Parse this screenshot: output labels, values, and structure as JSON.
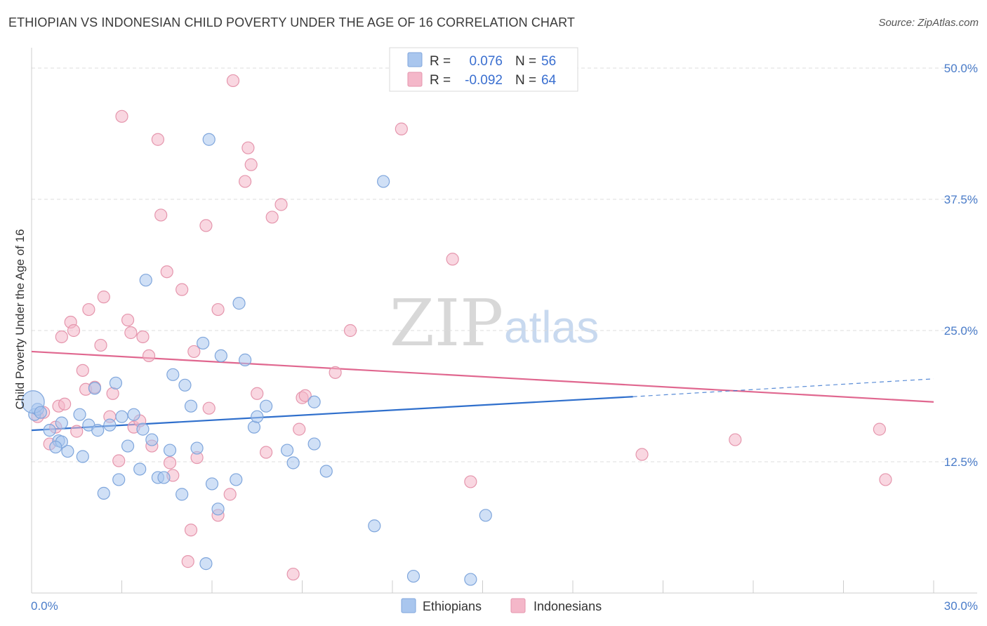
{
  "title": "ETHIOPIAN VS INDONESIAN CHILD POVERTY UNDER THE AGE OF 16 CORRELATION CHART",
  "source": "Source: ZipAtlas.com",
  "watermark": {
    "zip": "ZIP",
    "atlas": "atlas"
  },
  "legend": {
    "r_label": "R =",
    "n_label": "N =",
    "rows": [
      {
        "r": "0.076",
        "n": "56",
        "color": "#a9c6ee"
      },
      {
        "r": "-0.092",
        "n": "64",
        "color": "#f4b7c9"
      }
    ]
  },
  "bottom_legend": [
    {
      "label": "Ethiopians",
      "color": "#a9c6ee"
    },
    {
      "label": "Indonesians",
      "color": "#f4b7c9"
    }
  ],
  "colors": {
    "ethiopian_fill": "#a9c6ee",
    "ethiopian_stroke": "#7fa6dc",
    "ethiopian_line": "#2f6fcc",
    "indonesian_fill": "#f4b7c9",
    "indonesian_stroke": "#e596ad",
    "indonesian_line": "#e0678f",
    "tick_text": "#4a7cc9"
  },
  "chart_data": {
    "type": "scatter",
    "title": "ETHIOPIAN VS INDONESIAN CHILD POVERTY UNDER THE AGE OF 16 CORRELATION CHART",
    "xlabel": "",
    "ylabel": "Child Poverty Under the Age of 16",
    "xlim": [
      0,
      30
    ],
    "ylim": [
      0,
      50
    ],
    "x_tick_labels": [
      "0.0%",
      "30.0%"
    ],
    "y_tick_labels": [
      "12.5%",
      "25.0%",
      "37.5%",
      "50.0%"
    ],
    "y_ticks": [
      12.5,
      25.0,
      37.5,
      50.0
    ],
    "x_minor_ticks": [
      0,
      3,
      6,
      9,
      12,
      15,
      18,
      21,
      24,
      27,
      30
    ],
    "grid": "horizontal dashed",
    "legend_placement": "top-center",
    "series": [
      {
        "name": "Ethiopians",
        "points": [
          [
            0.1,
            17.0
          ],
          [
            0.2,
            17.5
          ],
          [
            0.6,
            15.5
          ],
          [
            0.9,
            14.5
          ],
          [
            1.0,
            16.2
          ],
          [
            1.2,
            13.5
          ],
          [
            1.6,
            17.0
          ],
          [
            1.7,
            13.0
          ],
          [
            1.9,
            16.0
          ],
          [
            2.1,
            19.5
          ],
          [
            2.2,
            15.5
          ],
          [
            2.4,
            9.5
          ],
          [
            2.6,
            16.0
          ],
          [
            2.8,
            20.0
          ],
          [
            2.9,
            10.8
          ],
          [
            3.0,
            16.8
          ],
          [
            3.2,
            14.0
          ],
          [
            3.4,
            17.0
          ],
          [
            3.6,
            11.8
          ],
          [
            3.7,
            15.6
          ],
          [
            3.8,
            29.8
          ],
          [
            4.0,
            14.6
          ],
          [
            4.2,
            11.0
          ],
          [
            4.4,
            11.0
          ],
          [
            4.6,
            13.6
          ],
          [
            4.7,
            20.8
          ],
          [
            5.0,
            9.4
          ],
          [
            5.1,
            19.8
          ],
          [
            5.3,
            17.8
          ],
          [
            5.5,
            13.8
          ],
          [
            5.7,
            23.8
          ],
          [
            5.8,
            2.8
          ],
          [
            5.9,
            43.2
          ],
          [
            6.0,
            10.4
          ],
          [
            6.2,
            8.0
          ],
          [
            6.3,
            22.6
          ],
          [
            6.8,
            10.8
          ],
          [
            6.9,
            27.6
          ],
          [
            7.1,
            22.2
          ],
          [
            7.4,
            15.8
          ],
          [
            7.5,
            16.8
          ],
          [
            7.8,
            17.8
          ],
          [
            8.5,
            13.6
          ],
          [
            8.7,
            12.4
          ],
          [
            9.4,
            14.2
          ],
          [
            9.4,
            18.2
          ],
          [
            9.8,
            11.6
          ],
          [
            11.4,
            6.4
          ],
          [
            11.7,
            39.2
          ],
          [
            12.7,
            1.6
          ],
          [
            14.6,
            1.3
          ],
          [
            15.1,
            7.4
          ],
          [
            0.05,
            18.2
          ],
          [
            0.3,
            17.2
          ],
          [
            1.0,
            14.4
          ],
          [
            0.8,
            13.9
          ]
        ],
        "trend": {
          "x_solid": [
            0,
            20
          ],
          "y_solid": [
            15.5,
            18.7
          ],
          "x_dashed": [
            20,
            30
          ],
          "y_dashed": [
            18.7,
            20.4
          ]
        }
      },
      {
        "name": "Indonesians",
        "points": [
          [
            0.2,
            16.8
          ],
          [
            0.4,
            17.2
          ],
          [
            0.6,
            14.2
          ],
          [
            0.8,
            15.8
          ],
          [
            0.9,
            17.8
          ],
          [
            1.0,
            24.4
          ],
          [
            1.1,
            18.0
          ],
          [
            1.3,
            25.8
          ],
          [
            1.4,
            25.0
          ],
          [
            1.5,
            15.4
          ],
          [
            1.7,
            21.2
          ],
          [
            1.8,
            19.4
          ],
          [
            1.9,
            27.0
          ],
          [
            2.1,
            19.6
          ],
          [
            2.3,
            23.6
          ],
          [
            2.4,
            28.2
          ],
          [
            2.6,
            16.8
          ],
          [
            2.7,
            19.0
          ],
          [
            2.9,
            12.6
          ],
          [
            3.0,
            45.4
          ],
          [
            3.2,
            26.0
          ],
          [
            3.3,
            24.8
          ],
          [
            3.4,
            15.8
          ],
          [
            3.6,
            16.4
          ],
          [
            3.7,
            24.4
          ],
          [
            3.9,
            22.6
          ],
          [
            4.0,
            14.0
          ],
          [
            4.2,
            43.2
          ],
          [
            4.3,
            36.0
          ],
          [
            4.5,
            30.6
          ],
          [
            4.6,
            12.4
          ],
          [
            4.7,
            11.2
          ],
          [
            5.0,
            28.9
          ],
          [
            5.2,
            3.0
          ],
          [
            5.3,
            6.0
          ],
          [
            5.4,
            23.0
          ],
          [
            5.5,
            12.9
          ],
          [
            5.8,
            35.0
          ],
          [
            5.9,
            17.6
          ],
          [
            6.2,
            7.4
          ],
          [
            6.2,
            27.0
          ],
          [
            6.6,
            9.4
          ],
          [
            6.7,
            48.8
          ],
          [
            7.1,
            39.2
          ],
          [
            7.2,
            42.4
          ],
          [
            7.3,
            40.8
          ],
          [
            7.5,
            19.0
          ],
          [
            7.8,
            13.4
          ],
          [
            8.0,
            35.8
          ],
          [
            8.3,
            37.0
          ],
          [
            8.7,
            1.8
          ],
          [
            8.9,
            15.6
          ],
          [
            9.0,
            18.6
          ],
          [
            9.1,
            18.8
          ],
          [
            10.1,
            21.0
          ],
          [
            10.6,
            25.0
          ],
          [
            12.3,
            44.2
          ],
          [
            14.0,
            31.8
          ],
          [
            14.6,
            10.6
          ],
          [
            16.2,
            49.6
          ],
          [
            20.3,
            13.2
          ],
          [
            23.4,
            14.6
          ],
          [
            28.2,
            15.6
          ],
          [
            28.4,
            10.8
          ]
        ],
        "trend": {
          "x_solid": [
            0,
            30
          ],
          "y_solid": [
            23.0,
            18.2
          ]
        }
      }
    ]
  }
}
